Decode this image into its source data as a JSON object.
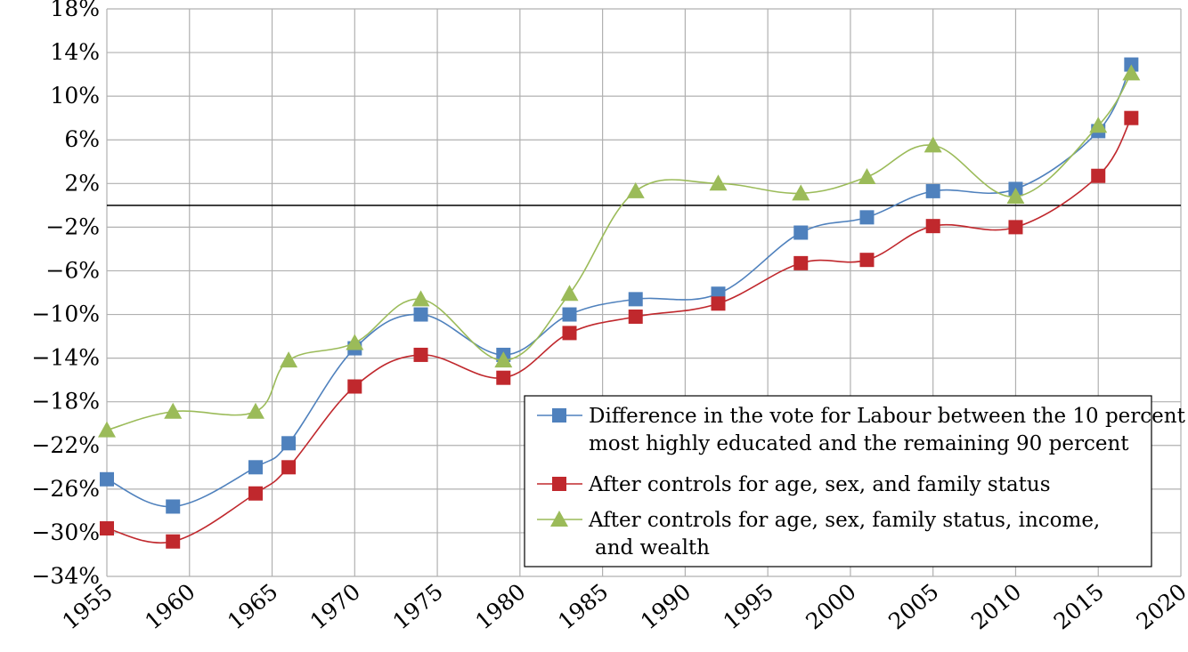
{
  "chart_data": {
    "type": "line",
    "title": "",
    "xlabel": "",
    "ylabel": "",
    "xlim": [
      1955,
      2020
    ],
    "ylim": [
      -34,
      18
    ],
    "x_ticks": [
      "1955",
      "1960",
      "1965",
      "1970",
      "1975",
      "1980",
      "1985",
      "1990",
      "1995",
      "2000",
      "2005",
      "2010",
      "2015",
      "2020"
    ],
    "y_ticks": [
      "18%",
      "14%",
      "10%",
      "6%",
      "2%",
      "−2%",
      "−6%",
      "−10%",
      "−14%",
      "−18%",
      "−22%",
      "−26%",
      "−30%",
      "−34%"
    ],
    "grid": true,
    "legend_position": "bottom-right",
    "series": [
      {
        "name": "Difference in the vote for Labour between the 10 percent most highly educated and the remaining 90 percent",
        "legend_lines": [
          "Difference in the vote for Labour between the 10 percent",
          "most highly educated and the remaining 90 percent"
        ],
        "color": "#4f81bd",
        "marker": "square",
        "points": [
          [
            1955,
            -25.1
          ],
          [
            1959,
            -27.6
          ],
          [
            1964,
            -24.0
          ],
          [
            1966,
            -21.8
          ],
          [
            1970,
            -13.1
          ],
          [
            1974,
            -10.0
          ],
          [
            1979,
            -13.7
          ],
          [
            1983,
            -10.0
          ],
          [
            1987,
            -8.6
          ],
          [
            1992,
            -8.1
          ],
          [
            1997,
            -2.5
          ],
          [
            2001,
            -1.1
          ],
          [
            2005,
            1.3
          ],
          [
            2010,
            1.5
          ],
          [
            2015,
            6.8
          ],
          [
            2017,
            12.9
          ]
        ]
      },
      {
        "name": "After controls for age, sex, and family status",
        "legend_lines": [
          "After controls for age, sex, and family status"
        ],
        "color": "#c0282d",
        "marker": "square",
        "points": [
          [
            1955,
            -29.6
          ],
          [
            1959,
            -30.8
          ],
          [
            1964,
            -26.4
          ],
          [
            1966,
            -24.0
          ],
          [
            1970,
            -16.6
          ],
          [
            1974,
            -13.7
          ],
          [
            1979,
            -15.8
          ],
          [
            1983,
            -11.7
          ],
          [
            1987,
            -10.2
          ],
          [
            1992,
            -9.0
          ],
          [
            1997,
            -5.3
          ],
          [
            2001,
            -5.0
          ],
          [
            2005,
            -1.9
          ],
          [
            2010,
            -2.0
          ],
          [
            2015,
            2.7
          ],
          [
            2017,
            8.0
          ]
        ]
      },
      {
        "name": "After controls for age, sex, family status, income, and wealth",
        "legend_lines": [
          "After controls for age, sex, family status, income,",
          "and wealth"
        ],
        "color": "#9bbb59",
        "marker": "triangle",
        "points": [
          [
            1955,
            -20.6
          ],
          [
            1959,
            -18.9
          ],
          [
            1964,
            -18.9
          ],
          [
            1966,
            -14.2
          ],
          [
            1970,
            -12.6
          ],
          [
            1974,
            -8.6
          ],
          [
            1979,
            -14.2
          ],
          [
            1983,
            -8.1
          ],
          [
            1987,
            1.3
          ],
          [
            1992,
            2.0
          ],
          [
            1997,
            1.1
          ],
          [
            2001,
            2.6
          ],
          [
            2005,
            5.5
          ],
          [
            2010,
            0.8
          ],
          [
            2015,
            7.3
          ],
          [
            2017,
            12.1
          ]
        ]
      }
    ]
  }
}
